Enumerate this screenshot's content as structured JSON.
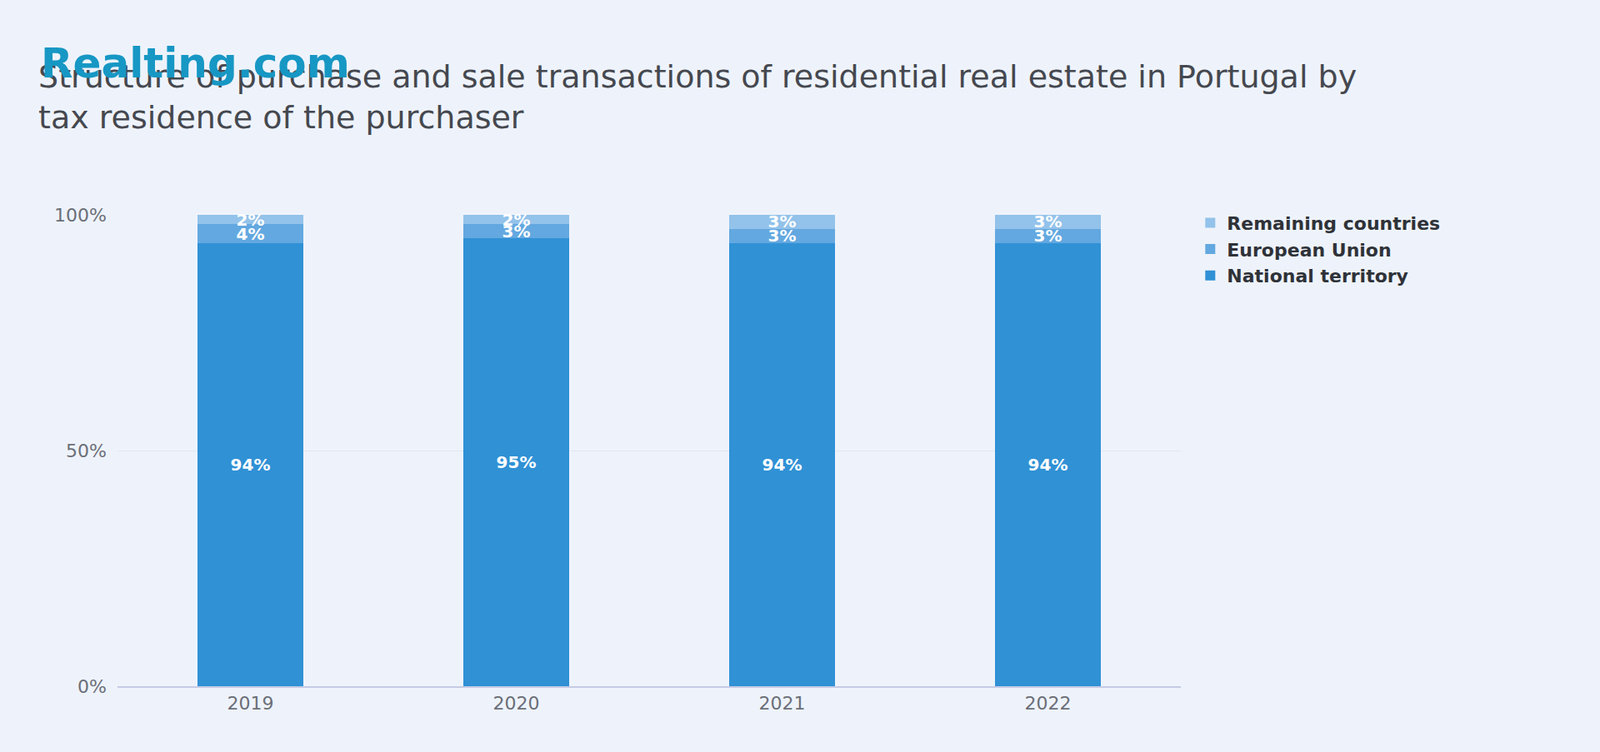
{
  "brand": "Realting.com",
  "chart_data": {
    "type": "bar",
    "title": "Structure of purchase and sale transactions of residential real estate in Portugal by tax residence of the purchaser",
    "categories": [
      "2019",
      "2020",
      "2021",
      "2022"
    ],
    "stacked": true,
    "data_labels": true,
    "grid": true,
    "legend": "upper right",
    "ylim": [
      0,
      100
    ],
    "yticks": [
      {
        "value": 0,
        "label": "0%"
      },
      {
        "value": 50,
        "label": "50%"
      },
      {
        "value": 100,
        "label": "100%"
      }
    ],
    "series": [
      {
        "name": "National territory",
        "color": "#3091d5",
        "values": [
          94,
          95,
          94,
          94
        ],
        "value_labels": [
          "94%",
          "95%",
          "94%",
          "94%"
        ]
      },
      {
        "name": "European Union",
        "color": "#63a8e0",
        "values": [
          4,
          3,
          3,
          3
        ],
        "value_labels": [
          "4%",
          "3%",
          "3%",
          "3%"
        ]
      },
      {
        "name": "Remaining countries",
        "color": "#93c2ea",
        "values": [
          2,
          2,
          3,
          3
        ],
        "value_labels": [
          "2%",
          "2%",
          "3%",
          "3%"
        ]
      }
    ]
  }
}
